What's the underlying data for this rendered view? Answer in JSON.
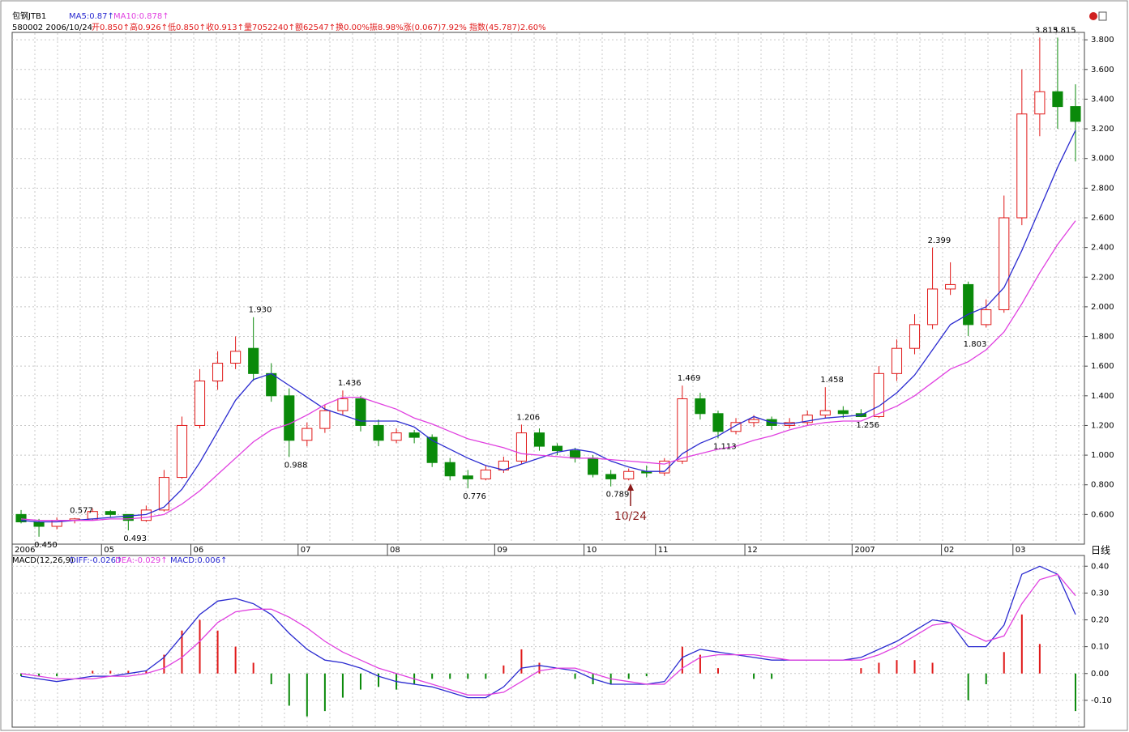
{
  "chart_data": [
    {
      "type": "candlestick",
      "title": "包钢JTB1",
      "ma5_label": "MA5:0.87↑",
      "ma10_label": "MA10:0.878↑",
      "subtitle": "580002 2006/10/24",
      "quote": "开0.850↑高0.926↑低0.850↑收0.913↑量7052240↑额62547↑换0.00%振8.98%涨(0.067)7.92% 指数(45.787)2.60%",
      "categories": [
        "2006",
        null,
        null,
        null,
        null,
        "05",
        null,
        null,
        null,
        null,
        "06",
        null,
        null,
        null,
        null,
        null,
        "07",
        null,
        null,
        null,
        null,
        "08",
        null,
        null,
        null,
        null,
        null,
        "09",
        null,
        null,
        null,
        null,
        "10",
        null,
        null,
        null,
        "11",
        null,
        null,
        null,
        null,
        "12",
        null,
        null,
        null,
        null,
        null,
        "2007",
        null,
        null,
        null,
        null,
        "02",
        null,
        null,
        null,
        "03",
        null,
        null,
        null
      ],
      "open": [
        0.6,
        0.55,
        0.52,
        0.56,
        0.57,
        0.62,
        0.6,
        0.56,
        0.63,
        0.85,
        1.2,
        1.5,
        1.62,
        1.72,
        1.55,
        1.4,
        1.1,
        1.18,
        1.3,
        1.38,
        1.2,
        1.1,
        1.15,
        1.12,
        0.95,
        0.86,
        0.84,
        0.9,
        0.96,
        1.15,
        1.06,
        1.03,
        0.98,
        0.87,
        0.84,
        0.89,
        0.88,
        0.96,
        1.38,
        1.28,
        1.16,
        1.22,
        1.24,
        1.2,
        1.22,
        1.27,
        1.3,
        1.28,
        1.26,
        1.55,
        1.72,
        1.88,
        2.12,
        2.15,
        1.88,
        1.98,
        2.6,
        3.3,
        3.45,
        3.35
      ],
      "high": [
        0.63,
        0.57,
        0.58,
        0.577,
        0.64,
        0.63,
        0.6,
        0.66,
        0.9,
        1.26,
        1.58,
        1.7,
        1.8,
        1.93,
        1.62,
        1.45,
        1.22,
        1.34,
        1.436,
        1.4,
        1.24,
        1.18,
        1.17,
        1.14,
        0.98,
        0.9,
        0.93,
        0.99,
        1.206,
        1.18,
        1.08,
        1.05,
        1.0,
        0.9,
        0.91,
        0.93,
        0.98,
        1.469,
        1.42,
        1.3,
        1.25,
        1.27,
        1.26,
        1.25,
        1.3,
        1.458,
        1.33,
        1.31,
        1.6,
        1.78,
        1.95,
        2.399,
        2.3,
        2.17,
        2.05,
        2.75,
        3.6,
        3.815,
        3.815,
        3.5
      ],
      "low": [
        0.54,
        0.45,
        0.5,
        0.54,
        0.56,
        0.58,
        0.493,
        0.55,
        0.62,
        0.84,
        1.18,
        1.44,
        1.58,
        1.5,
        1.36,
        0.988,
        1.06,
        1.15,
        1.27,
        1.16,
        1.06,
        1.08,
        1.08,
        0.92,
        0.83,
        0.776,
        0.83,
        0.88,
        0.94,
        1.03,
        1.0,
        0.95,
        0.85,
        0.789,
        0.83,
        0.85,
        0.86,
        0.94,
        1.24,
        1.113,
        1.14,
        1.19,
        1.17,
        1.18,
        1.2,
        1.25,
        1.25,
        1.256,
        1.25,
        1.5,
        1.68,
        1.85,
        2.08,
        1.803,
        1.86,
        1.96,
        2.55,
        3.15,
        3.2,
        2.98
      ],
      "close": [
        0.55,
        0.52,
        0.56,
        0.57,
        0.62,
        0.6,
        0.56,
        0.63,
        0.85,
        1.2,
        1.5,
        1.62,
        1.7,
        1.55,
        1.4,
        1.1,
        1.18,
        1.3,
        1.38,
        1.2,
        1.1,
        1.15,
        1.12,
        0.95,
        0.86,
        0.84,
        0.9,
        0.96,
        1.15,
        1.06,
        1.03,
        0.98,
        0.87,
        0.84,
        0.89,
        0.88,
        0.96,
        1.38,
        1.28,
        1.16,
        1.22,
        1.24,
        1.2,
        1.22,
        1.27,
        1.3,
        1.28,
        1.26,
        1.55,
        1.72,
        1.88,
        2.12,
        2.15,
        1.88,
        1.98,
        2.6,
        3.3,
        3.45,
        3.35,
        3.25
      ],
      "ma5": [
        0.56,
        0.55,
        0.55,
        0.56,
        0.57,
        0.58,
        0.59,
        0.6,
        0.65,
        0.77,
        0.95,
        1.16,
        1.37,
        1.51,
        1.55,
        1.47,
        1.39,
        1.31,
        1.27,
        1.23,
        1.23,
        1.23,
        1.19,
        1.1,
        1.04,
        0.98,
        0.93,
        0.9,
        0.94,
        0.98,
        1.02,
        1.04,
        1.02,
        0.96,
        0.92,
        0.89,
        0.89,
        1.01,
        1.08,
        1.13,
        1.2,
        1.26,
        1.22,
        1.21,
        1.23,
        1.25,
        1.26,
        1.27,
        1.33,
        1.42,
        1.54,
        1.71,
        1.88,
        1.95,
        2.0,
        2.13,
        2.38,
        2.66,
        2.94,
        3.19
      ],
      "ma10": [
        0.57,
        0.56,
        0.56,
        0.56,
        0.56,
        0.57,
        0.57,
        0.58,
        0.6,
        0.67,
        0.76,
        0.87,
        0.98,
        1.09,
        1.17,
        1.21,
        1.27,
        1.34,
        1.39,
        1.39,
        1.35,
        1.31,
        1.25,
        1.21,
        1.16,
        1.11,
        1.08,
        1.05,
        1.01,
        1.0,
        0.99,
        0.98,
        0.98,
        0.97,
        0.96,
        0.95,
        0.94,
        0.98,
        1.01,
        1.04,
        1.06,
        1.1,
        1.13,
        1.17,
        1.2,
        1.22,
        1.23,
        1.23,
        1.28,
        1.33,
        1.4,
        1.49,
        1.58,
        1.63,
        1.71,
        1.83,
        2.02,
        2.23,
        2.42,
        2.58
      ],
      "ma5_color": "#2a2ad0",
      "ma10_color": "#e040e0",
      "up_color": "#e01818",
      "down_color": "#0a8a0a",
      "ylim": [
        0.4,
        3.85
      ],
      "yticks": [
        {
          "value": 0.6,
          "label": "0.600"
        },
        {
          "value": 0.8,
          "label": "0.800"
        },
        {
          "value": 1.0,
          "label": "1.000"
        },
        {
          "value": 1.2,
          "label": "1.200"
        },
        {
          "value": 1.4,
          "label": "1.400"
        },
        {
          "value": 1.6,
          "label": "1.600"
        },
        {
          "value": 1.8,
          "label": "1.800"
        },
        {
          "value": 2.0,
          "label": "2.000"
        },
        {
          "value": 2.2,
          "label": "2.200"
        },
        {
          "value": 2.4,
          "label": "2.400"
        },
        {
          "value": 2.6,
          "label": "2.600"
        },
        {
          "value": 2.8,
          "label": "2.800"
        },
        {
          "value": 3.0,
          "label": "3.000"
        },
        {
          "value": 3.2,
          "label": "3.200"
        },
        {
          "value": 3.4,
          "label": "3.400"
        },
        {
          "value": 3.6,
          "label": "3.600"
        },
        {
          "value": 3.8,
          "label": "3.800"
        }
      ],
      "annotations": [
        {
          "value": 0.45,
          "label": "0.450"
        },
        {
          "value": 0.577,
          "label": "0.577"
        },
        {
          "value": 0.493,
          "label": "0.493"
        },
        {
          "value": 1.93,
          "label": "1.930"
        },
        {
          "value": 0.988,
          "label": "0.988"
        },
        {
          "value": 1.436,
          "label": "1.436"
        },
        {
          "value": 0.776,
          "label": "0.776"
        },
        {
          "value": 1.206,
          "label": "1.206"
        },
        {
          "value": 0.789,
          "label": "0.789"
        },
        {
          "value": 1.469,
          "label": "1.469"
        },
        {
          "value": 1.113,
          "label": "1.113"
        },
        {
          "value": 1.458,
          "label": "1.458"
        },
        {
          "value": 1.256,
          "label": "1.256"
        },
        {
          "value": 2.399,
          "label": "2.399"
        },
        {
          "value": 1.803,
          "label": "1.803"
        },
        {
          "value": 3.815,
          "label": "3.815"
        },
        {
          "value": 3.815,
          "label": "3.815"
        }
      ],
      "marker": "10/24",
      "period": "日线",
      "grid": true
    },
    {
      "type": "macd",
      "title": "MACD(12,26,9)",
      "diff_label": "DIFF:-0.026↑",
      "dea_label": "DEA:-0.029↑",
      "macd_label": "MACD:0.006↑",
      "diff": [
        -0.01,
        -0.02,
        -0.03,
        -0.02,
        -0.01,
        -0.01,
        0.0,
        0.01,
        0.06,
        0.14,
        0.22,
        0.27,
        0.28,
        0.26,
        0.22,
        0.15,
        0.09,
        0.05,
        0.04,
        0.02,
        -0.01,
        -0.03,
        -0.04,
        -0.05,
        -0.07,
        -0.09,
        -0.09,
        -0.05,
        0.02,
        0.03,
        0.02,
        0.01,
        -0.02,
        -0.04,
        -0.04,
        -0.04,
        -0.03,
        0.06,
        0.09,
        0.08,
        0.07,
        0.06,
        0.05,
        0.05,
        0.05,
        0.05,
        0.05,
        0.06,
        0.09,
        0.12,
        0.16,
        0.2,
        0.19,
        0.1,
        0.1,
        0.18,
        0.37,
        0.4,
        0.37,
        0.22
      ],
      "dea": [
        0.0,
        -0.01,
        -0.02,
        -0.02,
        -0.02,
        -0.01,
        -0.01,
        0.0,
        0.02,
        0.06,
        0.12,
        0.19,
        0.23,
        0.24,
        0.24,
        0.21,
        0.17,
        0.12,
        0.08,
        0.05,
        0.02,
        0.0,
        -0.02,
        -0.04,
        -0.06,
        -0.08,
        -0.08,
        -0.07,
        -0.03,
        0.01,
        0.02,
        0.02,
        0.0,
        -0.02,
        -0.03,
        -0.04,
        -0.04,
        0.02,
        0.06,
        0.07,
        0.07,
        0.07,
        0.06,
        0.05,
        0.05,
        0.05,
        0.05,
        0.05,
        0.07,
        0.1,
        0.14,
        0.18,
        0.19,
        0.15,
        0.12,
        0.14,
        0.26,
        0.35,
        0.37,
        0.29
      ],
      "macd": [
        -0.01,
        -0.01,
        -0.01,
        0.0,
        0.01,
        0.01,
        0.01,
        0.01,
        0.07,
        0.16,
        0.2,
        0.16,
        0.1,
        0.04,
        -0.04,
        -0.12,
        -0.16,
        -0.14,
        -0.09,
        -0.06,
        -0.05,
        -0.06,
        -0.04,
        -0.02,
        -0.02,
        -0.02,
        -0.02,
        0.03,
        0.09,
        0.04,
        0.0,
        -0.02,
        -0.04,
        -0.04,
        -0.02,
        -0.01,
        0.0,
        0.1,
        0.07,
        0.02,
        0.0,
        -0.02,
        -0.02,
        0.0,
        0.0,
        0.0,
        0.0,
        0.02,
        0.04,
        0.05,
        0.05,
        0.04,
        0.0,
        -0.1,
        -0.04,
        0.08,
        0.22,
        0.11,
        0.0,
        -0.14
      ],
      "diff_color": "#2a2ad0",
      "dea_color": "#e040e0",
      "up_color": "#e01818",
      "down_color": "#0a8a0a",
      "ylim": [
        -0.2,
        0.44
      ],
      "yticks": [
        {
          "value": -0.1,
          "label": "-0.10"
        },
        {
          "value": 0,
          "label": "0.00"
        },
        {
          "value": 0.1,
          "label": "0.10"
        },
        {
          "value": 0.2,
          "label": "0.20"
        },
        {
          "value": 0.3,
          "label": "0.30"
        },
        {
          "value": 0.4,
          "label": "0.40"
        }
      ]
    }
  ]
}
